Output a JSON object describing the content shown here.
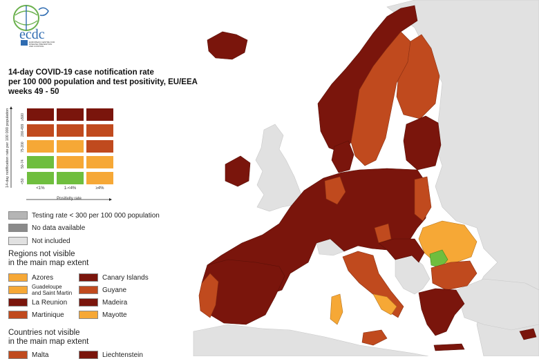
{
  "logo": {
    "text": "ecdc",
    "caption_lines": [
      "EUROPEAN CENTRE FOR",
      "DISEASE PREVENTION",
      "AND CONTROL"
    ]
  },
  "title": {
    "line1": "14-day COVID-19 case notification rate",
    "line2": "per 100 000 population and test positivity, EU/EEA",
    "line3": "weeks 49 - 50"
  },
  "colors": {
    "dark_red": "#7a150c",
    "red": "#c04a1e",
    "orange": "#f6a836",
    "green": "#6fbe3e",
    "grey_testing": "#b5b5b5",
    "grey_nodata": "#8a8a8a",
    "not_included": "#e1e1e1",
    "sea": "#ffffff"
  },
  "matrix": {
    "y_title": "14-day notification rate per 100 000 population",
    "y_ticks": [
      "≥500",
      "200-499",
      "75-200",
      "50-74",
      "<50"
    ],
    "x_title": "Positivity rate",
    "x_ticks": [
      "<1%",
      "1-<4%",
      "≥4%"
    ],
    "rows": [
      [
        "dark_red",
        "dark_red",
        "dark_red"
      ],
      [
        "red",
        "red",
        "red"
      ],
      [
        "orange",
        "orange",
        "red"
      ],
      [
        "green",
        "orange",
        "orange"
      ],
      [
        "green",
        "green",
        "orange"
      ]
    ]
  },
  "legend": {
    "testing_rate": "Testing rate < 300 per 100 000 population",
    "no_data": "No data available",
    "not_included": "Not included"
  },
  "regions_heading": {
    "line1": "Regions not visible",
    "line2": "in the main map extent"
  },
  "regions": [
    {
      "label": "Azores",
      "color": "orange"
    },
    {
      "label": "Canary Islands",
      "color": "dark_red"
    },
    {
      "label_line1": "Guadeloupe",
      "label_line2": "and Saint Martin",
      "color": "orange"
    },
    {
      "label": "Guyane",
      "color": "red"
    },
    {
      "label": "La Reunion",
      "color": "dark_red"
    },
    {
      "label": "Madeira",
      "color": "dark_red"
    },
    {
      "label": "Martinique",
      "color": "red"
    },
    {
      "label": "Mayotte",
      "color": "orange"
    }
  ],
  "countries_heading": {
    "line1": "Countries not visible",
    "line2": "in the main map extent"
  },
  "countries": [
    {
      "label": "Malta",
      "color": "red"
    },
    {
      "label": "Liechtenstein",
      "color": "dark_red"
    }
  ]
}
